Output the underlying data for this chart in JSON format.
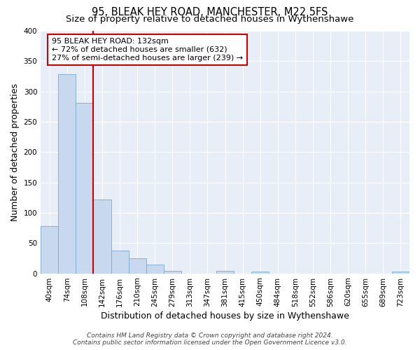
{
  "title": "95, BLEAK HEY ROAD, MANCHESTER, M22 5FS",
  "subtitle": "Size of property relative to detached houses in Wythenshawe",
  "xlabel": "Distribution of detached houses by size in Wythenshawe",
  "ylabel": "Number of detached properties",
  "bin_labels": [
    "40sqm",
    "74sqm",
    "108sqm",
    "142sqm",
    "176sqm",
    "210sqm",
    "245sqm",
    "279sqm",
    "313sqm",
    "347sqm",
    "381sqm",
    "415sqm",
    "450sqm",
    "484sqm",
    "518sqm",
    "552sqm",
    "586sqm",
    "620sqm",
    "655sqm",
    "689sqm",
    "723sqm"
  ],
  "bar_heights": [
    78,
    328,
    281,
    122,
    38,
    25,
    14,
    4,
    0,
    0,
    4,
    0,
    3,
    0,
    0,
    0,
    0,
    0,
    0,
    0,
    3
  ],
  "bar_color": "#c8d8ee",
  "bar_edge_color": "#7aaad0",
  "vline_color": "#cc0000",
  "vline_x": 2.5,
  "annotation_text": "95 BLEAK HEY ROAD: 132sqm\n← 72% of detached houses are smaller (632)\n27% of semi-detached houses are larger (239) →",
  "annotation_box_facecolor": "#ffffff",
  "annotation_box_edgecolor": "#cc0000",
  "ylim": [
    0,
    400
  ],
  "yticks": [
    0,
    50,
    100,
    150,
    200,
    250,
    300,
    350,
    400
  ],
  "bg_color": "#ffffff",
  "plot_bg_color": "#e8eef8",
  "grid_color": "#ffffff",
  "footer_line1": "Contains HM Land Registry data © Crown copyright and database right 2024.",
  "footer_line2": "Contains public sector information licensed under the Open Government Licence v3.0.",
  "title_fontsize": 10.5,
  "subtitle_fontsize": 9.5,
  "xlabel_fontsize": 9,
  "ylabel_fontsize": 9,
  "tick_fontsize": 7.5,
  "annotation_fontsize": 8,
  "footer_fontsize": 6.5
}
